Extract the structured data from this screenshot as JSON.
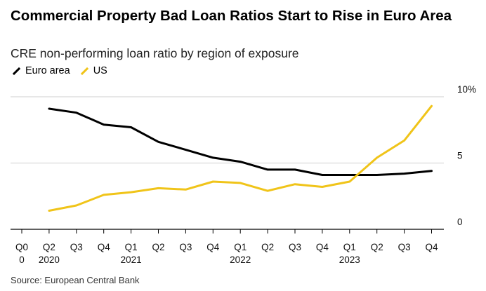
{
  "title": "Commercial Property Bad Loan Ratios Start to Rise in Euro Area",
  "subtitle": "CRE non-performing loan ratio by region of exposure",
  "source": "Source: European Central Bank",
  "legend": [
    {
      "name": "Euro area",
      "color": "#000000"
    },
    {
      "name": "US",
      "color": "#f0c419"
    }
  ],
  "chart_data": {
    "type": "line",
    "title": "Commercial Property Bad Loan Ratios Start to Rise in Euro Area",
    "subtitle": "CRE non-performing loan ratio by region of exposure",
    "xlabel": "",
    "ylabel": "",
    "ylim": [
      0,
      10
    ],
    "y_ticks": [
      "0",
      "5",
      "10%"
    ],
    "y_tick_values": [
      0,
      5,
      10
    ],
    "grid": true,
    "legend_position": "top-left",
    "x_tick_labels": [
      {
        "q": "Q0",
        "year": "0"
      },
      {
        "q": "Q2",
        "year": "2020"
      },
      {
        "q": "Q3",
        "year": ""
      },
      {
        "q": "Q4",
        "year": ""
      },
      {
        "q": "Q1",
        "year": "2021"
      },
      {
        "q": "Q2",
        "year": ""
      },
      {
        "q": "Q3",
        "year": ""
      },
      {
        "q": "Q4",
        "year": ""
      },
      {
        "q": "Q1",
        "year": "2022"
      },
      {
        "q": "Q2",
        "year": ""
      },
      {
        "q": "Q3",
        "year": ""
      },
      {
        "q": "Q4",
        "year": ""
      },
      {
        "q": "Q1",
        "year": "2023"
      },
      {
        "q": "Q2",
        "year": ""
      },
      {
        "q": "Q3",
        "year": ""
      },
      {
        "q": "Q4",
        "year": ""
      }
    ],
    "series": [
      {
        "name": "Euro area",
        "color": "#000000",
        "start_index": 1,
        "values": [
          9.1,
          8.8,
          7.9,
          7.7,
          6.6,
          6.0,
          5.4,
          5.1,
          4.5,
          4.5,
          4.1,
          4.1,
          4.1,
          4.2,
          4.4
        ]
      },
      {
        "name": "US",
        "color": "#f0c419",
        "start_index": 1,
        "values": [
          1.4,
          1.8,
          2.6,
          2.8,
          3.1,
          3.0,
          3.6,
          3.5,
          2.9,
          3.4,
          3.2,
          3.6,
          5.4,
          6.7,
          9.3
        ]
      }
    ]
  }
}
